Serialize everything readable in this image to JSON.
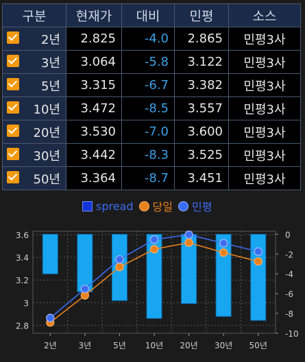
{
  "table": {
    "headers": [
      "구분",
      "현재가",
      "대비",
      "민평",
      "소스"
    ],
    "rows": [
      {
        "term": "2년",
        "price": "2.825",
        "change": "-4.0",
        "minpyeong": "2.865",
        "source": "민평3사",
        "checked": true
      },
      {
        "term": "3년",
        "price": "3.064",
        "change": "-5.8",
        "minpyeong": "3.122",
        "source": "민평3사",
        "checked": true
      },
      {
        "term": "5년",
        "price": "3.315",
        "change": "-6.7",
        "minpyeong": "3.382",
        "source": "민평3사",
        "checked": true
      },
      {
        "term": "10년",
        "price": "3.472",
        "change": "-8.5",
        "minpyeong": "3.557",
        "source": "민평3사",
        "checked": true
      },
      {
        "term": "20년",
        "price": "3.530",
        "change": "-7.0",
        "minpyeong": "3.600",
        "source": "민평3사",
        "checked": true
      },
      {
        "term": "30년",
        "price": "3.442",
        "change": "-8.3",
        "minpyeong": "3.525",
        "source": "민평3사",
        "checked": true
      },
      {
        "term": "50년",
        "price": "3.364",
        "change": "-8.7",
        "minpyeong": "3.451",
        "source": "민평3사",
        "checked": true
      }
    ]
  },
  "colors": {
    "change_negative": "#3aa0e8",
    "checkbox": "#f39a10",
    "bar": "#19a6f0",
    "line_today": "#e8821e",
    "line_minpyeong": "#3b6df0"
  },
  "chart_data": {
    "type": "bar+line",
    "categories": [
      "2년",
      "3년",
      "5년",
      "10년",
      "20년",
      "30년",
      "50년"
    ],
    "legend": [
      "spread",
      "당일",
      "민평"
    ],
    "series": [
      {
        "name": "spread",
        "type": "bar",
        "axis": "right",
        "values": [
          -4.0,
          -5.8,
          -6.7,
          -8.5,
          -7.0,
          -8.3,
          -8.7
        ]
      },
      {
        "name": "당일",
        "type": "line",
        "axis": "left",
        "values": [
          2.825,
          3.064,
          3.315,
          3.472,
          3.53,
          3.442,
          3.364
        ]
      },
      {
        "name": "민평",
        "type": "line",
        "axis": "left",
        "values": [
          2.865,
          3.122,
          3.382,
          3.557,
          3.6,
          3.525,
          3.451
        ]
      }
    ],
    "left_axis": {
      "ticks": [
        "2.8",
        "3",
        "3.2",
        "3.4",
        "3.6"
      ],
      "range": [
        2.73,
        3.63
      ]
    },
    "right_axis": {
      "ticks": [
        "0",
        "-2",
        "-4",
        "-6",
        "-8",
        "-10"
      ],
      "range": [
        -10,
        0.3
      ]
    },
    "grid": true
  }
}
